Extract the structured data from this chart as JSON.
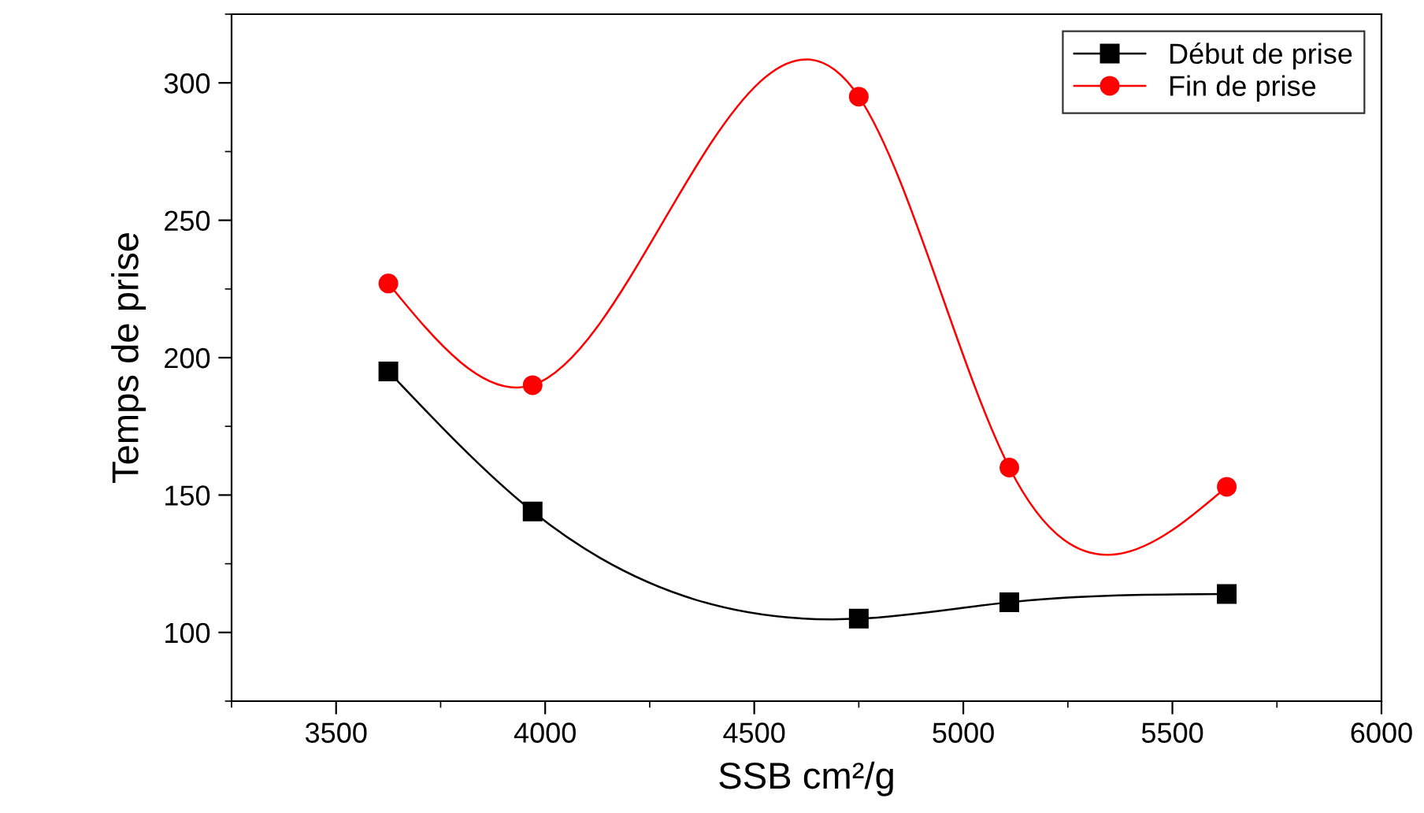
{
  "chart_data": {
    "type": "line",
    "xlabel": "SSB cm²/g",
    "ylabel": "Temps de prise",
    "x": [
      3625,
      3970,
      4750,
      5110,
      5630
    ],
    "series": [
      {
        "name": "Début de prise",
        "color": "#000000",
        "marker": "square",
        "values": [
          195,
          144,
          105,
          111,
          114
        ]
      },
      {
        "name": "Fin de prise",
        "color": "#ff0000",
        "marker": "circle",
        "values": [
          227,
          190,
          295,
          160,
          153
        ]
      }
    ],
    "xlim": [
      3250,
      6000
    ],
    "xticks": [
      3500,
      4000,
      4500,
      5000,
      5500,
      6000
    ],
    "ylim": [
      75,
      325
    ],
    "yticks": [
      100,
      150,
      200,
      250,
      300
    ],
    "grid": false,
    "legend": "top right",
    "line_style": "solid"
  }
}
